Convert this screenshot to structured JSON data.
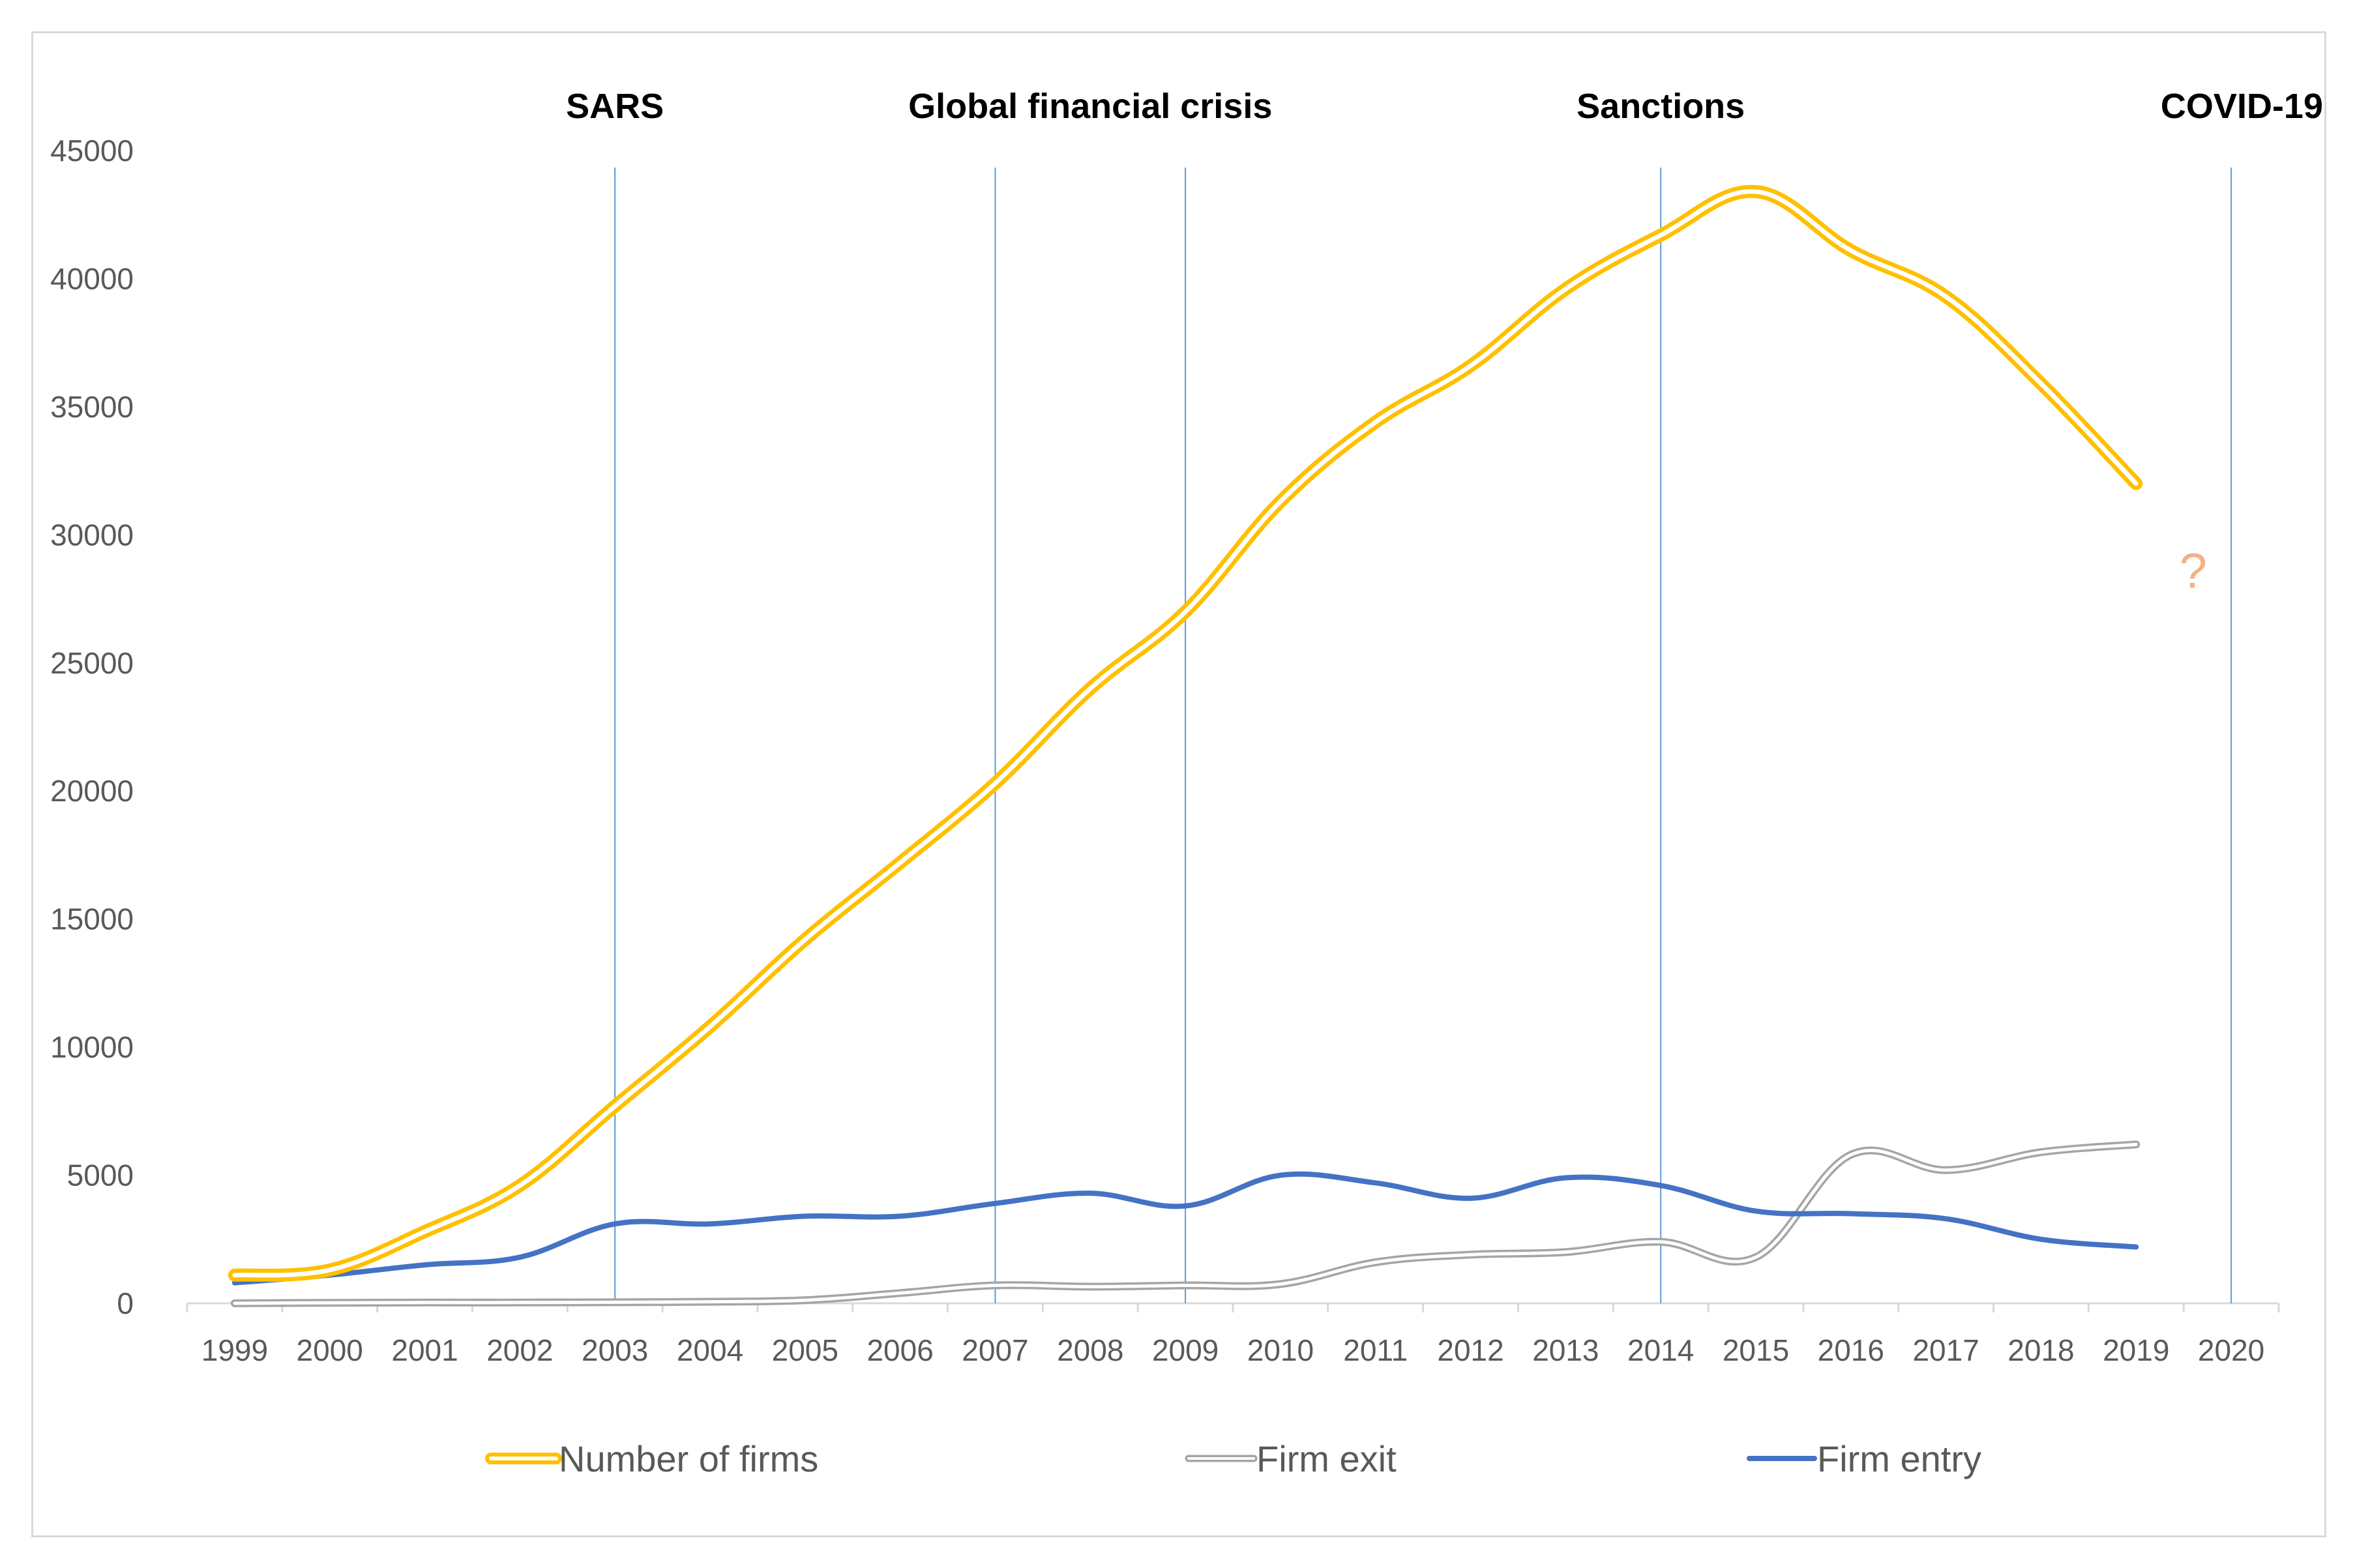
{
  "chart_data": {
    "type": "line",
    "title": "",
    "xlabel": "",
    "ylabel": "",
    "categories": [
      "1999",
      "2000",
      "2001",
      "2002",
      "2003",
      "2004",
      "2005",
      "2006",
      "2007",
      "2008",
      "2009",
      "2010",
      "2011",
      "2012",
      "2013",
      "2014",
      "2015",
      "2016",
      "2017",
      "2018",
      "2019",
      "2020"
    ],
    "ylim": [
      0,
      45000
    ],
    "yticks": [
      "0",
      "5000",
      "10000",
      "15000",
      "20000",
      "25000",
      "30000",
      "35000",
      "40000",
      "45000"
    ],
    "grid": false,
    "legend_position": "bottom",
    "series": [
      {
        "name": "Number of firms",
        "color": "#ffc000",
        "style": "double-line",
        "values": [
          1100,
          1300,
          2800,
          4600,
          7700,
          10800,
          14200,
          17200,
          20300,
          24000,
          27000,
          31300,
          34400,
          36600,
          39600,
          41700,
          43400,
          41100,
          39300,
          35900,
          32000,
          null
        ]
      },
      {
        "name": "Firm exit",
        "color": "#a5a5a5",
        "style": "double-line",
        "values": [
          0,
          20,
          30,
          30,
          40,
          60,
          120,
          400,
          700,
          650,
          700,
          750,
          1600,
          1900,
          2000,
          2400,
          1800,
          5800,
          5200,
          5900,
          6200,
          null
        ]
      },
      {
        "name": "Firm entry",
        "color": "#4472c4",
        "style": "solid",
        "values": [
          800,
          1100,
          1500,
          1800,
          3100,
          3100,
          3400,
          3400,
          3900,
          4300,
          3800,
          5000,
          4700,
          4100,
          4900,
          4600,
          3600,
          3500,
          3300,
          2500,
          2200,
          null
        ]
      }
    ],
    "events": [
      {
        "label": "SARS",
        "x": 2003
      },
      {
        "label": "Global financial crisis",
        "x": 2007,
        "x_end": 2009
      },
      {
        "label": "Sanctions",
        "x": 2014
      },
      {
        "label": "COVID-19",
        "x": 2020
      }
    ],
    "annotations": [
      {
        "text": "?",
        "x": 2019.6,
        "y": 28600,
        "color": "#f4b183"
      }
    ],
    "event_line_color": "#5b9bd5"
  }
}
